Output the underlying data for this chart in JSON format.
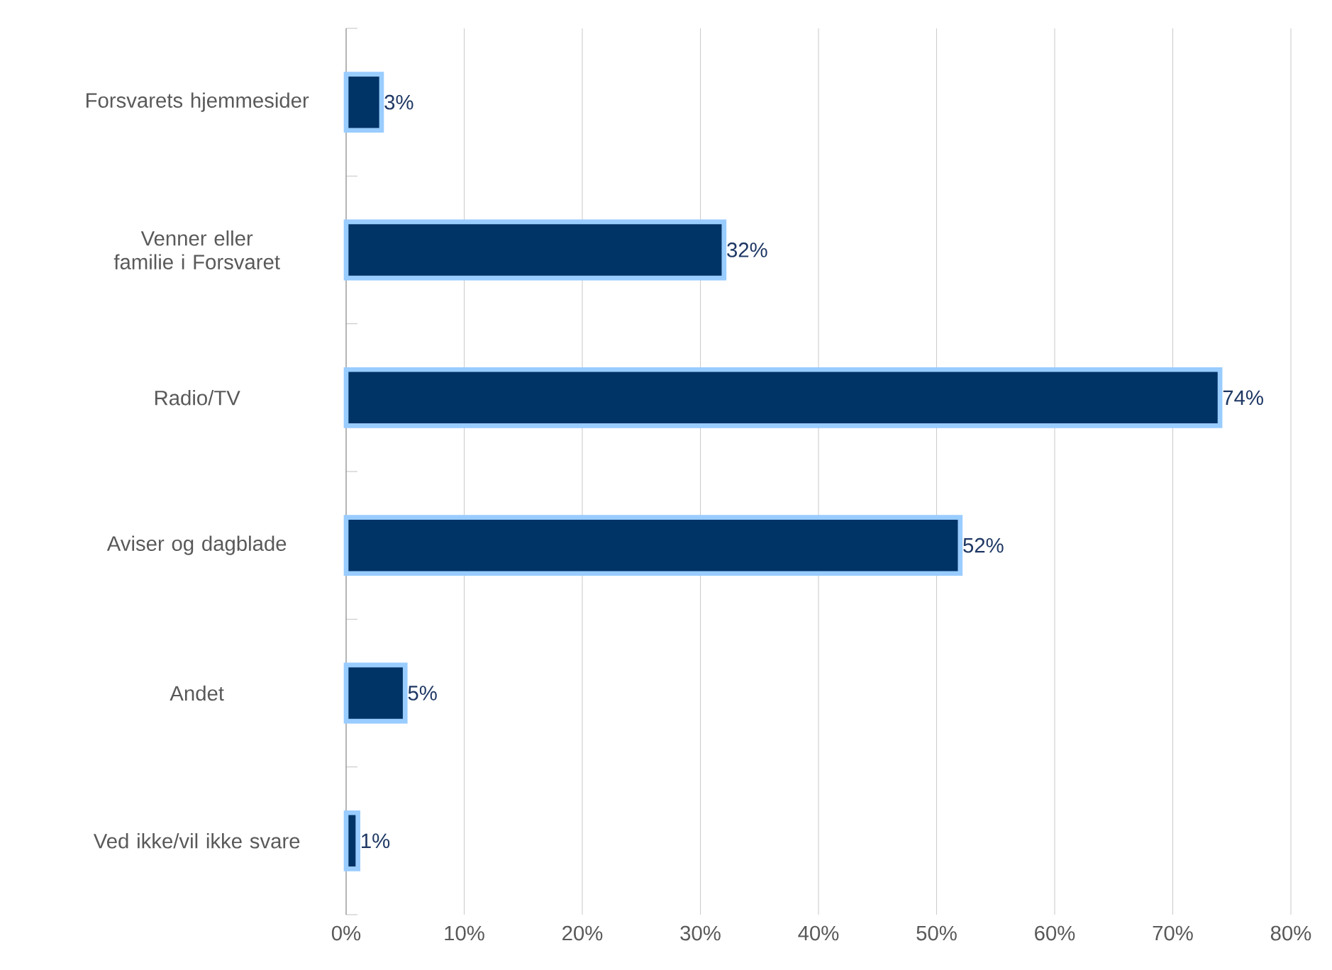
{
  "chart_data": {
    "type": "bar",
    "orientation": "horizontal",
    "categories": [
      "Forsvarets hjemmesider",
      "Venner eller familie i Forsvaret",
      "Radio/TV",
      "Aviser og dagblade",
      "Andet",
      "Ved ikke/vil ikke svare"
    ],
    "values": [
      3,
      32,
      74,
      52,
      5,
      1
    ],
    "value_labels": [
      "3%",
      "32%",
      "74%",
      "52%",
      "5%",
      "1%"
    ],
    "color": "#003366",
    "xlim": [
      0,
      80
    ],
    "xticks": [
      {
        "value": 0,
        "label": "0%"
      },
      {
        "value": 10,
        "label": "10%"
      },
      {
        "value": 20,
        "label": "20%"
      },
      {
        "value": 30,
        "label": "30%"
      },
      {
        "value": 40,
        "label": "40%"
      },
      {
        "value": 50,
        "label": "50%"
      },
      {
        "value": 60,
        "label": "60%"
      },
      {
        "value": 70,
        "label": "70%"
      },
      {
        "value": 80,
        "label": "80%"
      }
    ],
    "grid": "x"
  }
}
